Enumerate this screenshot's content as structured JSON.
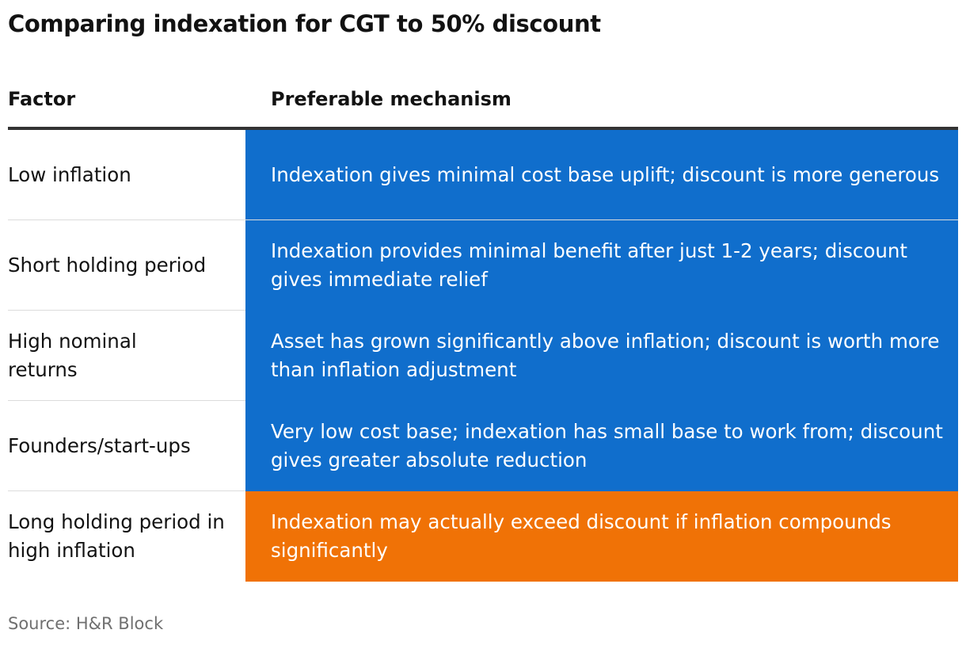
{
  "title": "Comparing indexation for CGT to 50% discount",
  "headers": {
    "factor": "Factor",
    "mechanism": "Preferable mechanism"
  },
  "rows": [
    {
      "factor": "Low inflation",
      "mechanism": "Indexation gives minimal cost base uplift; discount is more generous",
      "color": "#106ecc"
    },
    {
      "factor": "Short holding period",
      "mechanism": "Indexation provides minimal benefit after just 1-2 years; discount gives immediate relief",
      "color": "#106ecc"
    },
    {
      "factor": "High nominal returns",
      "mechanism": "Asset has grown significantly above inflation; discount is worth more than inflation adjustment",
      "color": "#106ecc"
    },
    {
      "factor": "Founders/start-ups",
      "mechanism": "Very low cost base; indexation has small base to work from; discount gives greater absolute reduction",
      "color": "#106ecc"
    },
    {
      "factor": "Long holding period in high inflation",
      "mechanism": "Indexation may actually exceed discount if inflation compounds significantly",
      "color": "#f07206"
    }
  ],
  "source": "Source: H&R Block"
}
